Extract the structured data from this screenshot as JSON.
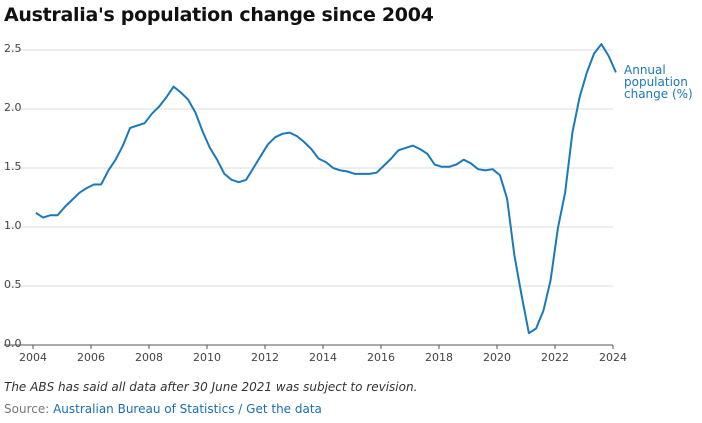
{
  "chart_data": {
    "type": "line",
    "title": "Australia's population change since 2004",
    "note": "The ABS has said all data after 30 June 2021 was subject to revision.",
    "source_label": "Source:",
    "source": "Australian Bureau of Statistics / Get the data",
    "x": [
      2004.1,
      2004.35,
      2004.6,
      2004.85,
      2005.1,
      2005.35,
      2005.6,
      2005.85,
      2006.1,
      2006.35,
      2006.6,
      2006.85,
      2007.1,
      2007.35,
      2007.6,
      2007.85,
      2008.1,
      2008.35,
      2008.6,
      2008.85,
      2009.1,
      2009.35,
      2009.6,
      2009.85,
      2010.1,
      2010.35,
      2010.6,
      2010.85,
      2011.1,
      2011.35,
      2011.6,
      2011.85,
      2012.1,
      2012.35,
      2012.6,
      2012.85,
      2013.1,
      2013.35,
      2013.6,
      2013.85,
      2014.1,
      2014.35,
      2014.6,
      2014.85,
      2015.1,
      2015.35,
      2015.6,
      2015.85,
      2016.1,
      2016.35,
      2016.6,
      2016.85,
      2017.1,
      2017.35,
      2017.6,
      2017.85,
      2018.1,
      2018.35,
      2018.6,
      2018.85,
      2019.1,
      2019.35,
      2019.6,
      2019.85,
      2020.1,
      2020.35,
      2020.6,
      2020.85,
      2021.1,
      2021.35,
      2021.6,
      2021.85,
      2022.1,
      2022.35,
      2022.6,
      2022.85,
      2023.1,
      2023.35,
      2023.6,
      2023.85,
      2024.1
    ],
    "series": [
      {
        "name": "Annual population change (%)",
        "color": "#1a7ab8",
        "values": [
          1.12,
          1.08,
          1.1,
          1.1,
          1.17,
          1.23,
          1.29,
          1.33,
          1.36,
          1.36,
          1.48,
          1.57,
          1.69,
          1.84,
          1.86,
          1.88,
          1.96,
          2.02,
          2.1,
          2.19,
          2.14,
          2.08,
          1.97,
          1.81,
          1.67,
          1.57,
          1.45,
          1.4,
          1.38,
          1.4,
          1.5,
          1.6,
          1.7,
          1.76,
          1.79,
          1.8,
          1.77,
          1.72,
          1.66,
          1.58,
          1.55,
          1.5,
          1.48,
          1.47,
          1.45,
          1.45,
          1.45,
          1.46,
          1.52,
          1.58,
          1.65,
          1.67,
          1.69,
          1.66,
          1.62,
          1.53,
          1.51,
          1.51,
          1.53,
          1.57,
          1.54,
          1.49,
          1.48,
          1.49,
          1.44,
          1.24,
          0.76,
          0.42,
          0.1,
          0.14,
          0.29,
          0.55,
          0.99,
          1.29,
          1.8,
          2.1,
          2.31,
          2.47,
          2.55,
          2.45,
          2.31
        ]
      }
    ],
    "xlim": [
      2004,
      2024
    ],
    "xticks": [
      2004,
      2006,
      2008,
      2010,
      2012,
      2014,
      2016,
      2018,
      2020,
      2022,
      2024
    ],
    "ylim": [
      0,
      2.5
    ],
    "yticks": [
      {
        "value": 0,
        "label": "0.0"
      },
      0.5,
      {
        "value": 1,
        "label": "1.0"
      },
      1.5,
      {
        "value": 2,
        "label": "2.0"
      },
      2.5
    ],
    "grid": true
  }
}
